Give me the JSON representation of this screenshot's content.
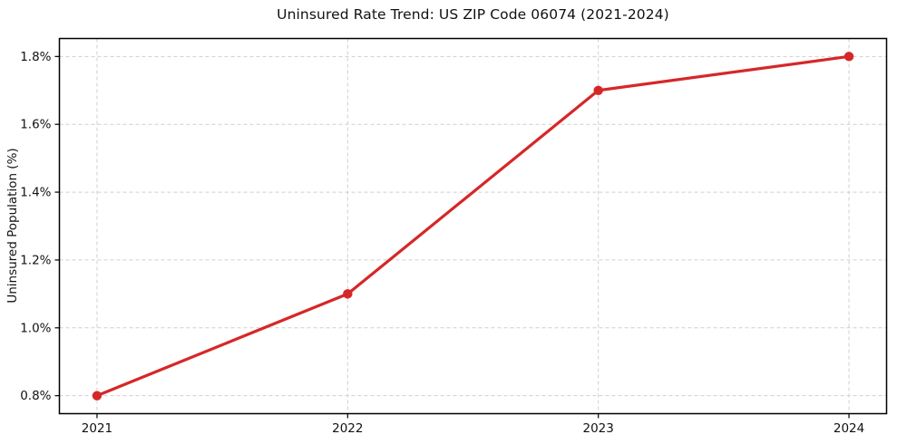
{
  "chart_data": {
    "type": "line",
    "title": "Uninsured Rate Trend: US ZIP Code 06074 (2021-2024)",
    "xlabel": "",
    "ylabel": "Uninsured Population (%)",
    "x": [
      2021,
      2022,
      2023,
      2024
    ],
    "x_tick_labels": [
      "2021",
      "2022",
      "2023",
      "2024"
    ],
    "values": [
      0.8,
      1.1,
      1.7,
      1.8
    ],
    "y_ticks": [
      0.8,
      1.0,
      1.2,
      1.4,
      1.6,
      1.8
    ],
    "y_tick_labels": [
      "0.8%",
      "1.0%",
      "1.2%",
      "1.4%",
      "1.6%",
      "1.8%"
    ],
    "xlim": [
      2020.85,
      2024.15
    ],
    "ylim": [
      0.747,
      1.853
    ],
    "grid": true,
    "grid_style": "dashed",
    "legend": "none",
    "line_color": "#d62728",
    "marker": "circle",
    "grid_color": "#cfcfcf",
    "spine_color": "#000000",
    "background": "#ffffff"
  }
}
